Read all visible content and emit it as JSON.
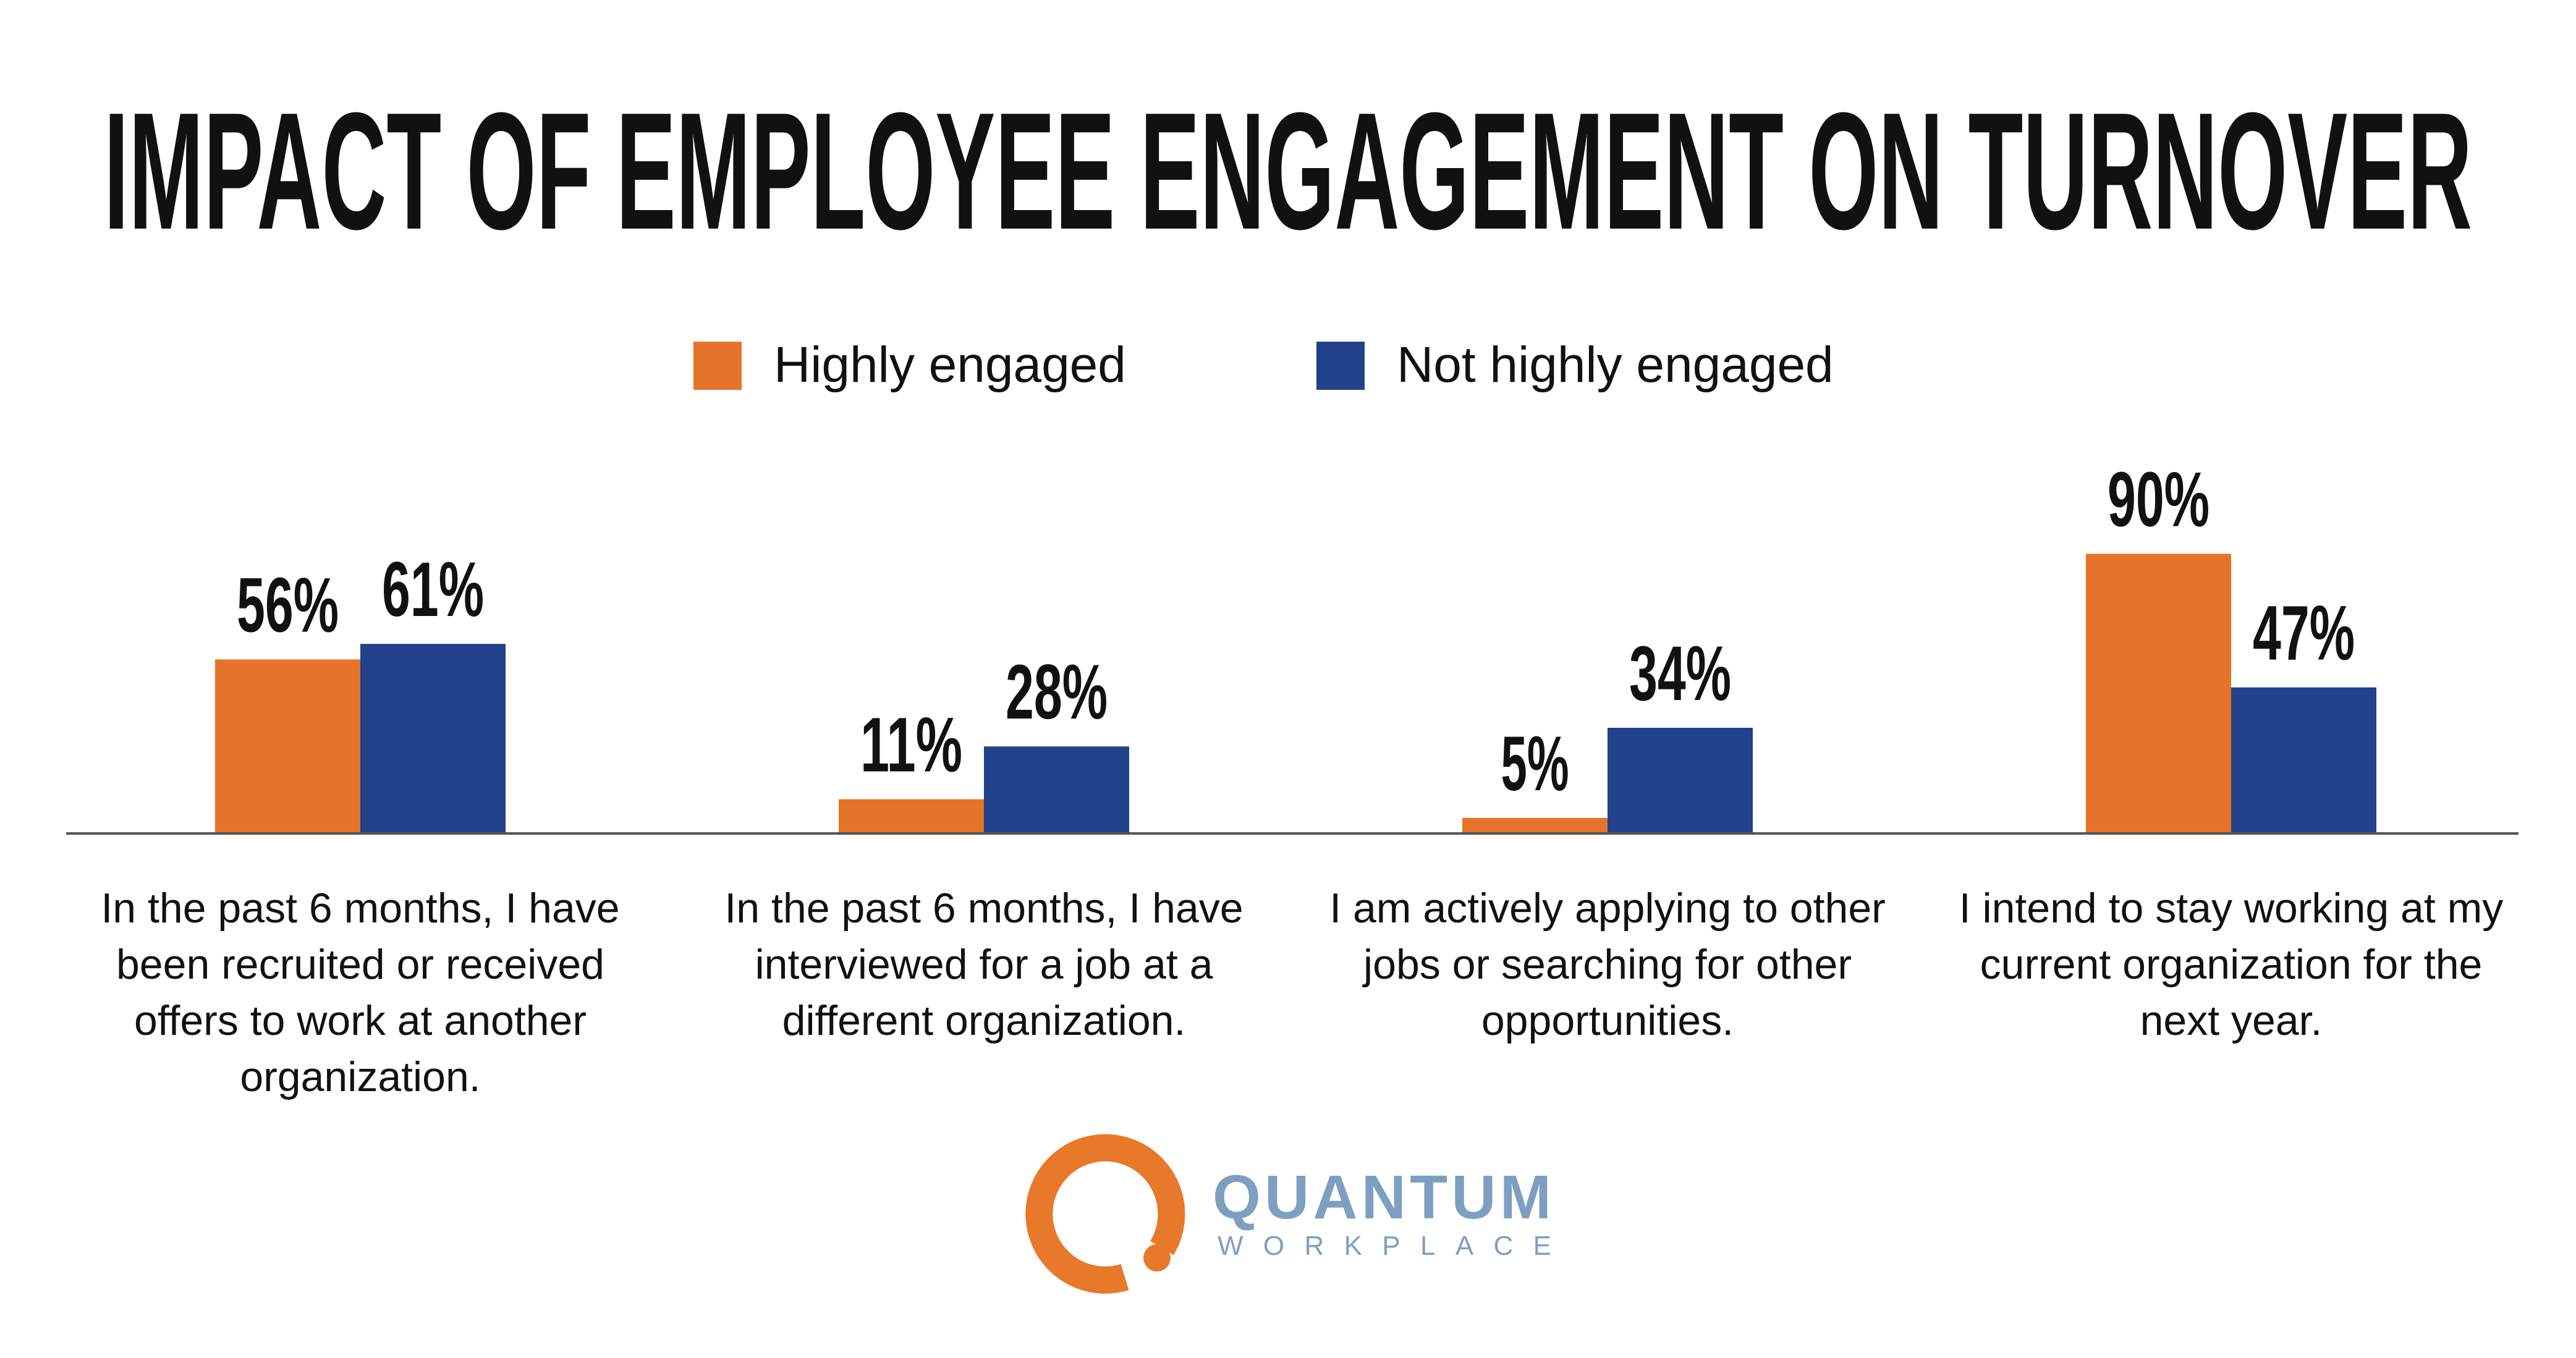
{
  "chart_data": {
    "type": "bar",
    "title": "IMPACT OF EMPLOYEE ENGAGEMENT ON TURNOVER",
    "categories": [
      "In the past 6 months, I have been recruited or received offers to work at another organization.",
      "In the past 6 months, I have interviewed for a job at a different organization.",
      "I am actively applying to other jobs or searching for other opportunities.",
      "I intend to stay working at my current organization for the next year."
    ],
    "series": [
      {
        "name": "Highly engaged",
        "color": "#e5742a",
        "values": [
          56,
          11,
          5,
          90
        ],
        "value_labels": [
          "56%",
          "11%",
          "5%",
          "90%"
        ]
      },
      {
        "name": "Not highly engaged",
        "color": "#21428a",
        "values": [
          61,
          28,
          34,
          47
        ],
        "value_labels": [
          "61%",
          "28%",
          "34%",
          "47%"
        ]
      }
    ]
  },
  "logo": {
    "name": "QUANTUM",
    "tagline": "WORKPLACE"
  }
}
